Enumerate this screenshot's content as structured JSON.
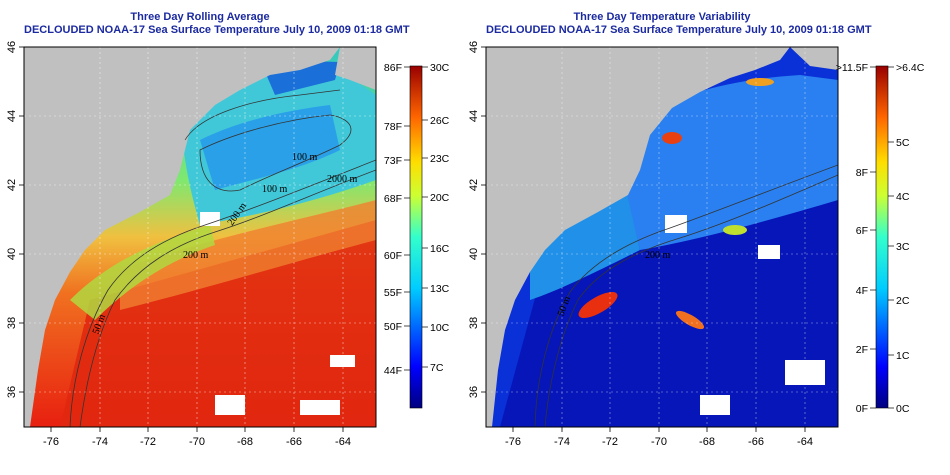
{
  "panels": [
    {
      "title": "Three Day Rolling Average",
      "subtitle": "DECLOUDED NOAA-17 Sea Surface Temperature July 10, 2009 01:18 GMT",
      "contours": [
        "100 m",
        "200 m",
        "100 m",
        "2000 m",
        "200 m",
        "50 m"
      ],
      "colorbar_left": [
        "86F",
        "78F",
        "73F",
        "68F",
        "60F",
        "55F",
        "50F",
        "44F"
      ],
      "colorbar_right": [
        "30C",
        "26C",
        "23C",
        "20C",
        "16C",
        "13C",
        "10C",
        "7C"
      ]
    },
    {
      "title": "Three Day Temperature Variability",
      "subtitle": "DECLOUDED NOAA-17 Sea Surface Temperature July 10, 2009 01:18 GMT",
      "contours": [
        "200 m",
        "50 m"
      ],
      "colorbar_left": [
        ">11.5F",
        "8F",
        "6F",
        "4F",
        "2F",
        "0F"
      ],
      "colorbar_right": [
        ">6.4C",
        "5C",
        "4C",
        "3C",
        "2C",
        "1C",
        "0C"
      ]
    }
  ],
  "axes": {
    "x_ticks": [
      "-76",
      "-74",
      "-72",
      "-70",
      "-68",
      "-66",
      "-64"
    ],
    "y_ticks": [
      "46",
      "44",
      "42",
      "40",
      "38",
      "36"
    ]
  }
}
